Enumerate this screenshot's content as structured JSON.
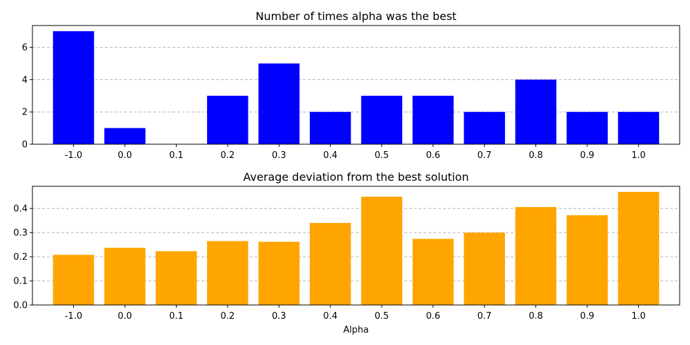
{
  "chart_data": [
    {
      "type": "bar",
      "title": "Number of times alpha was the best",
      "xlabel": "",
      "ylabel": "",
      "categories": [
        "-1.0",
        "0.0",
        "0.1",
        "0.2",
        "0.3",
        "0.4",
        "0.5",
        "0.6",
        "0.7",
        "0.8",
        "0.9",
        "1.0"
      ],
      "values": [
        7,
        1,
        0,
        3,
        5,
        2,
        3,
        3,
        2,
        4,
        2,
        2
      ],
      "ylim": [
        0,
        7.35
      ],
      "yticks": [
        0,
        2,
        4,
        6
      ],
      "ytick_labels": [
        "0",
        "2",
        "4",
        "6"
      ],
      "color": "#0000ff",
      "grid": "y-dashed"
    },
    {
      "type": "bar",
      "title": "Average deviation from the best solution",
      "xlabel": "Alpha",
      "ylabel": "",
      "categories": [
        "-1.0",
        "0.0",
        "0.1",
        "0.2",
        "0.3",
        "0.4",
        "0.5",
        "0.6",
        "0.7",
        "0.8",
        "0.9",
        "1.0"
      ],
      "values": [
        0.208,
        0.237,
        0.223,
        0.265,
        0.262,
        0.34,
        0.449,
        0.274,
        0.3,
        0.406,
        0.372,
        0.469
      ],
      "ylim": [
        0,
        0.492
      ],
      "yticks": [
        0,
        0.1,
        0.2,
        0.3,
        0.4
      ],
      "ytick_labels": [
        "0.0",
        "0.1",
        "0.2",
        "0.3",
        "0.4"
      ],
      "color": "#ffa500",
      "grid": "y-dashed"
    }
  ]
}
